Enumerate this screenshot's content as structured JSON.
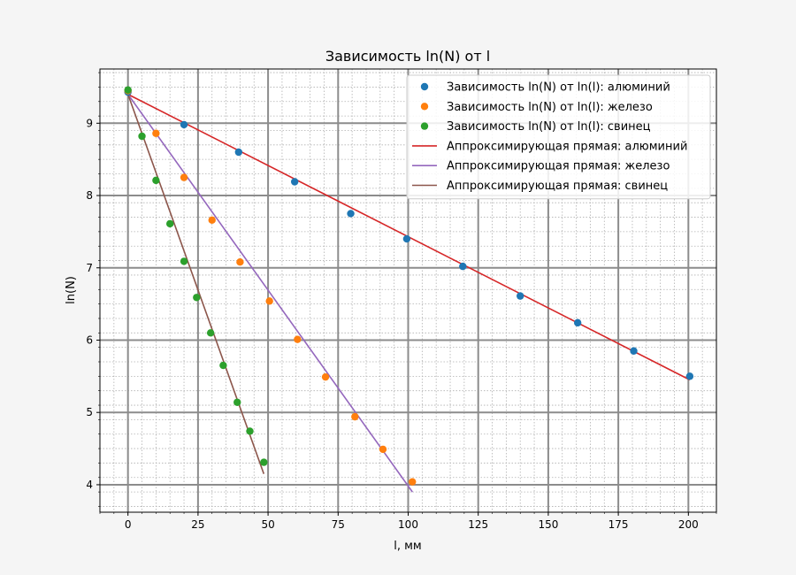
{
  "chart_data": {
    "type": "scatter",
    "title": "Зависимость ln(N) от l",
    "xlabel": "l, мм",
    "ylabel": "ln(N)",
    "xlim": [
      -10,
      210
    ],
    "ylim": [
      3.62,
      9.75
    ],
    "xticks": [
      0,
      25,
      50,
      75,
      100,
      125,
      150,
      175,
      200
    ],
    "yticks": [
      4,
      5,
      6,
      7,
      8,
      9
    ],
    "grid": true,
    "legend_position": "top-right",
    "series": [
      {
        "name": "Зависимость ln(N) от ln(l): алюминий",
        "kind": "points",
        "color": "#1f77b4",
        "x": [
          0,
          20,
          39.5,
          59.5,
          79.5,
          99.5,
          119.5,
          140,
          160.5,
          180.5,
          200.5
        ],
        "y": [
          9.43,
          8.98,
          8.6,
          8.19,
          7.75,
          7.4,
          7.02,
          6.61,
          6.24,
          5.85,
          5.5
        ]
      },
      {
        "name": "Зависимость ln(N) от ln(l): железо",
        "kind": "points",
        "color": "#ff7f0e",
        "x": [
          0,
          10,
          20,
          30,
          40,
          50.5,
          60.5,
          70.5,
          81,
          91,
          101.5
        ],
        "y": [
          9.45,
          8.86,
          8.25,
          7.66,
          7.08,
          6.54,
          6.01,
          5.49,
          4.94,
          4.49,
          4.04
        ]
      },
      {
        "name": "Зависимость ln(N) от ln(l): свинец",
        "kind": "points",
        "color": "#2ca02c",
        "x": [
          0,
          5,
          10,
          15,
          20,
          24.5,
          29.5,
          34,
          39,
          43.5,
          48.5
        ],
        "y": [
          9.46,
          8.82,
          8.21,
          7.61,
          7.09,
          6.59,
          6.1,
          5.65,
          5.14,
          4.74,
          4.31
        ]
      },
      {
        "name": "Аппроксимирующая прямая: алюминий",
        "kind": "line",
        "color": "#d62728",
        "x": [
          0,
          200.5
        ],
        "y": [
          9.4,
          5.45
        ]
      },
      {
        "name": "Аппроксимирующая прямая: железо",
        "kind": "line",
        "color": "#9467bd",
        "x": [
          0,
          101.5
        ],
        "y": [
          9.4,
          3.9
        ]
      },
      {
        "name": "Аппроксимирующая прямая: свинец",
        "kind": "line",
        "color": "#8c564b",
        "x": [
          0,
          48.5
        ],
        "y": [
          9.4,
          4.15
        ]
      }
    ]
  }
}
